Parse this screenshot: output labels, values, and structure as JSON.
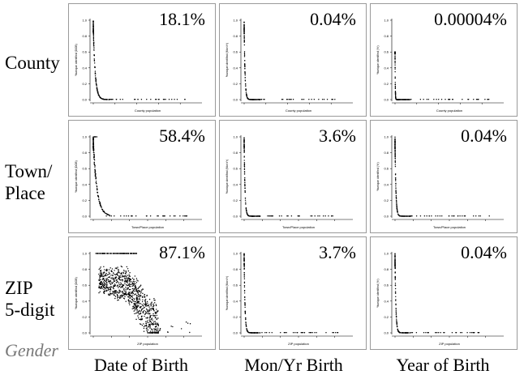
{
  "row_labels": [
    [
      "County"
    ],
    [
      "Town/",
      "Place"
    ],
    [
      "ZIP",
      "5-digit"
    ]
  ],
  "col_labels": [
    "Date of Birth",
    "Mon/Yr Birth",
    "Year of Birth"
  ],
  "corner_label": "Gender",
  "chart_data": [
    {
      "type": "scatter",
      "row": 0,
      "col": 0,
      "annotation": "18.1%",
      "xlabel": "County population",
      "ylabel": "%unique identified (DOB)",
      "ylim": [
        0,
        1
      ],
      "yticks": [
        "0.0",
        "0.2",
        "0.4",
        "0.6",
        "0.8",
        "1.0"
      ],
      "xtick_count": 5
    },
    {
      "type": "scatter",
      "row": 0,
      "col": 1,
      "annotation": "0.04%",
      "xlabel": "County population",
      "ylabel": "%unique identified (MonYr)",
      "ylim": [
        0,
        1
      ],
      "yticks": [
        "0.0",
        "0.2",
        "0.4",
        "0.6",
        "0.8",
        "1.0"
      ],
      "xtick_count": 5
    },
    {
      "type": "scatter",
      "row": 0,
      "col": 2,
      "annotation": "0.00004%",
      "xlabel": "County population",
      "ylabel": "%unique identified (Yr)",
      "ylim": [
        0,
        1
      ],
      "yticks": [
        "0.0",
        "0.2",
        "0.4",
        "0.6",
        "0.8",
        "1.0"
      ],
      "xtick_count": 5
    },
    {
      "type": "scatter",
      "row": 1,
      "col": 0,
      "annotation": "58.4%",
      "xlabel": "Town/Place population",
      "ylabel": "%unique identified (DOB)",
      "ylim": [
        0,
        1
      ],
      "yticks": [
        "0.0",
        "0.2",
        "0.4",
        "0.6",
        "0.8",
        "1.0"
      ],
      "xtick_count": 6
    },
    {
      "type": "scatter",
      "row": 1,
      "col": 1,
      "annotation": "3.6%",
      "xlabel": "Town/Place population",
      "ylabel": "%unique identified (MonYr)",
      "ylim": [
        0,
        1
      ],
      "yticks": [
        "0.0",
        "0.2",
        "0.4",
        "0.6",
        "0.8",
        "1.0"
      ],
      "xtick_count": 6
    },
    {
      "type": "scatter",
      "row": 1,
      "col": 2,
      "annotation": "0.04%",
      "xlabel": "Town/Place population",
      "ylabel": "%unique identified (Yr)",
      "ylim": [
        0,
        1
      ],
      "yticks": [
        "0.0",
        "0.2",
        "0.4",
        "0.6",
        "0.8",
        "1.0"
      ],
      "xtick_count": 6
    },
    {
      "type": "scatter",
      "row": 2,
      "col": 0,
      "annotation": "87.1%",
      "xlabel": "ZIP population",
      "ylabel": "%unique identified (DOB)",
      "ylim": [
        0,
        1
      ],
      "yticks": [
        "0.0",
        "0.2",
        "0.4",
        "0.6",
        "0.8",
        "1.0"
      ],
      "xtick_count": 6
    },
    {
      "type": "scatter",
      "row": 2,
      "col": 1,
      "annotation": "3.7%",
      "xlabel": "ZIP population",
      "ylabel": "%unique identified (MonYr)",
      "ylim": [
        0,
        1
      ],
      "yticks": [
        "0.0",
        "0.2",
        "0.4",
        "0.6",
        "0.8",
        "1.0"
      ],
      "xtick_count": 6
    },
    {
      "type": "scatter",
      "row": 2,
      "col": 2,
      "annotation": "0.04%",
      "xlabel": "ZIP population",
      "ylabel": "%unique identified (Yr)",
      "ylim": [
        0,
        1
      ],
      "yticks": [
        "0.0",
        "0.2",
        "0.4",
        "0.6",
        "0.8",
        "1.0"
      ],
      "xtick_count": 6
    }
  ]
}
